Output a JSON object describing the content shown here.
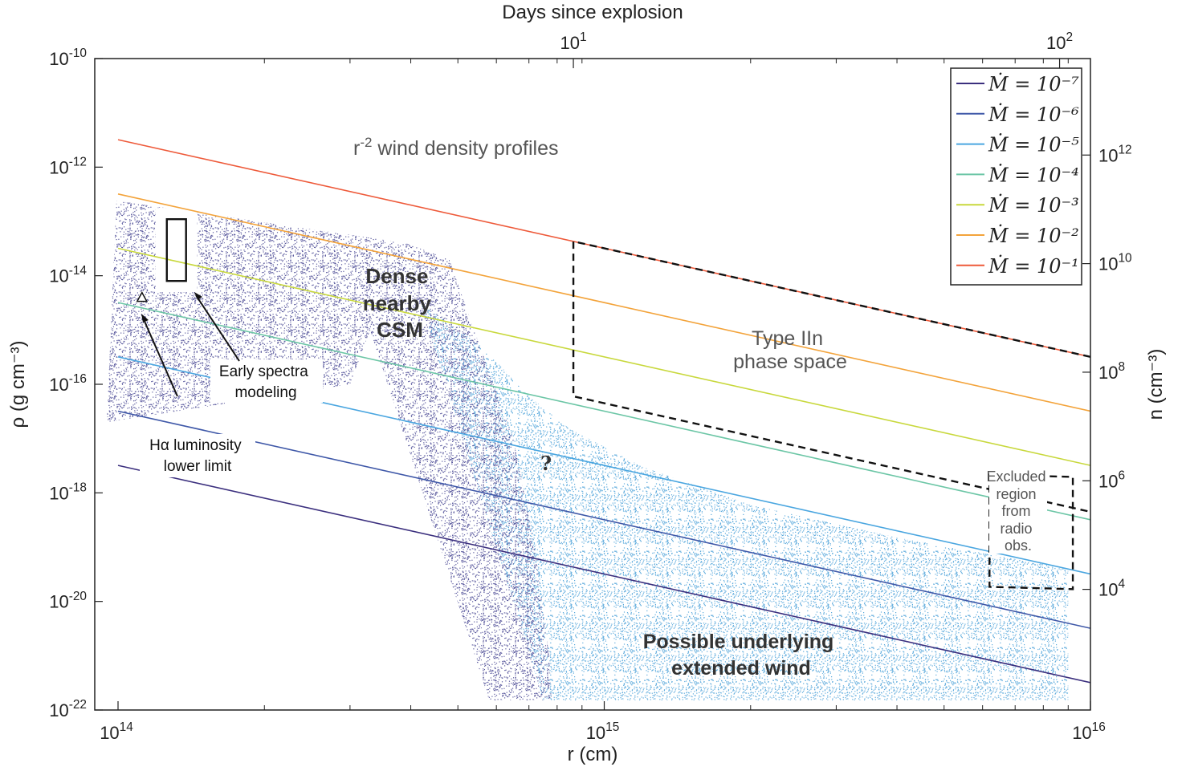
{
  "chart_data": {
    "type": "line",
    "xlabel": "r (cm)",
    "ylabel": "ρ (g cm⁻³)",
    "top_xlabel": "Days since explosion",
    "right_ylabel": "n (cm⁻³)",
    "x_scale": "log",
    "y_scale": "log",
    "xlim": [
      100000000000000.0,
      1e+16
    ],
    "ylim": [
      1e-22,
      1e-10
    ],
    "x_ticks": [
      {
        "base": "10",
        "exp": "14",
        "v": 100000000000000.0
      },
      {
        "base": "10",
        "exp": "15",
        "v": 1000000000000000.0
      },
      {
        "base": "10",
        "exp": "16",
        "v": 1e+16
      }
    ],
    "y_ticks": [
      {
        "base": "10",
        "exp": "-10",
        "v": -10
      },
      {
        "base": "10",
        "exp": "-12",
        "v": -12
      },
      {
        "base": "10",
        "exp": "-14",
        "v": -14
      },
      {
        "base": "10",
        "exp": "-16",
        "v": -16
      },
      {
        "base": "10",
        "exp": "-18",
        "v": -18
      },
      {
        "base": "10",
        "exp": "-20",
        "v": -20
      },
      {
        "base": "10",
        "exp": "-22",
        "v": -22
      }
    ],
    "top_ticks": [
      {
        "base": "10",
        "exp": "1",
        "days": 10,
        "r": 864000000000000.0
      },
      {
        "base": "10",
        "exp": "2",
        "days": 100,
        "r": 8640000000000000.0
      }
    ],
    "right_ticks": [
      {
        "base": "10",
        "exp": "12",
        "n": 1000000000000.0
      },
      {
        "base": "10",
        "exp": "10",
        "n": 10000000000.0
      },
      {
        "base": "10",
        "exp": "8",
        "n": 100000000.0
      },
      {
        "base": "10",
        "exp": "6",
        "n": 1000000.0
      },
      {
        "base": "10",
        "exp": "4",
        "n": 10000.0
      }
    ],
    "series": [
      {
        "name": "Ṁ = 10⁻⁷",
        "color": "#3b2f7e",
        "x": [
          100000000000000.0,
          1e+16
        ],
        "y": [
          3.2e-18,
          3.2e-22
        ]
      },
      {
        "name": "Ṁ = 10⁻⁶",
        "color": "#3f58a8",
        "x": [
          100000000000000.0,
          1e+16
        ],
        "y": [
          3.2e-17,
          3.2e-21
        ]
      },
      {
        "name": "Ṁ = 10⁻⁵",
        "color": "#4aa6e0",
        "x": [
          100000000000000.0,
          1e+16
        ],
        "y": [
          3.2e-16,
          3.2e-20
        ]
      },
      {
        "name": "Ṁ = 10⁻⁴",
        "color": "#6cc6a6",
        "x": [
          100000000000000.0,
          1e+16
        ],
        "y": [
          3.2e-15,
          3.2e-19
        ]
      },
      {
        "name": "Ṁ = 10⁻³",
        "color": "#c8d83c",
        "x": [
          100000000000000.0,
          1e+16
        ],
        "y": [
          3.2e-14,
          3.2e-18
        ]
      },
      {
        "name": "Ṁ = 10⁻²",
        "color": "#f3a33a",
        "x": [
          100000000000000.0,
          1e+16
        ],
        "y": [
          3.2e-13,
          3.2e-17
        ]
      },
      {
        "name": "Ṁ = 10⁻¹",
        "color": "#ee5a3a",
        "x": [
          100000000000000.0,
          1e+16
        ],
        "y": [
          3.2e-12,
          3.2e-16
        ]
      }
    ],
    "legend": {
      "position": "top-right"
    },
    "annotations": {
      "wind_profiles": {
        "r": "r",
        "sup": "-2",
        "rest": " wind density profiles"
      },
      "dense_csm": [
        "Dense",
        "nearby",
        "CSM"
      ],
      "type_iin": [
        "Type IIn",
        "phase space"
      ],
      "excluded": [
        "Excluded",
        "region",
        "from",
        "radio",
        "obs."
      ],
      "possible_wind": [
        "Possible underlying",
        "extended wind"
      ],
      "early_spectra": [
        "Early spectra",
        "modeling"
      ],
      "halpha": [
        "Hα luminosity",
        "lower limit"
      ],
      "question": "?"
    },
    "regions": {
      "type_iin_box": {
        "r_min": 864000000000000.0,
        "rho_at_rmin_low": 6e-17,
        "r_max": 1e+16
      },
      "excluded_box": {
        "r_min": 6200000000000000.0,
        "r_max": 9200000000000000.0,
        "rho_max": 7e-18,
        "rho_min": 6e-20
      },
      "early_spectra_box": {
        "r_min": 126000000000000.0,
        "r_max": 138000000000000.0,
        "rho_max": 1.1e-13,
        "rho_min": 8e-15
      },
      "halpha_point": {
        "r": 112000000000000.0,
        "rho": 4e-15
      },
      "dense_csm_region": {
        "r_min": 100000000000000.0,
        "r_break": 480000000000000.0,
        "r_bottom": 580000000000000.0
      },
      "extended_wind_region": {
        "r_max": 9000000000000000.0
      }
    },
    "grid": false
  }
}
